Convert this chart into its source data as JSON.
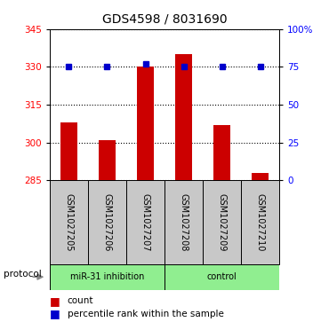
{
  "title": "GDS4598 / 8031690",
  "samples": [
    "GSM1027205",
    "GSM1027206",
    "GSM1027207",
    "GSM1027208",
    "GSM1027209",
    "GSM1027210"
  ],
  "counts": [
    308,
    301,
    330,
    335,
    307,
    288
  ],
  "percentiles": [
    75,
    75,
    77,
    75,
    75,
    75
  ],
  "ylim_left": [
    285,
    345
  ],
  "ylim_right": [
    0,
    100
  ],
  "yticks_left": [
    285,
    300,
    315,
    330,
    345
  ],
  "yticks_right": [
    0,
    25,
    50,
    75,
    100
  ],
  "ytick_labels_right": [
    "0",
    "25",
    "50",
    "75",
    "100%"
  ],
  "bar_color": "#CC0000",
  "dot_color": "#0000CC",
  "label_bg_color": "#C8C8C8",
  "green_color": "#90EE90",
  "title_fontsize": 10,
  "tick_fontsize": 7.5,
  "sample_fontsize": 7,
  "bar_width": 0.45,
  "miR_label": "miR-31 inhibition",
  "control_label": "control",
  "protocol_text": "protocol",
  "legend_count": "count",
  "legend_pct": "percentile rank within the sample"
}
